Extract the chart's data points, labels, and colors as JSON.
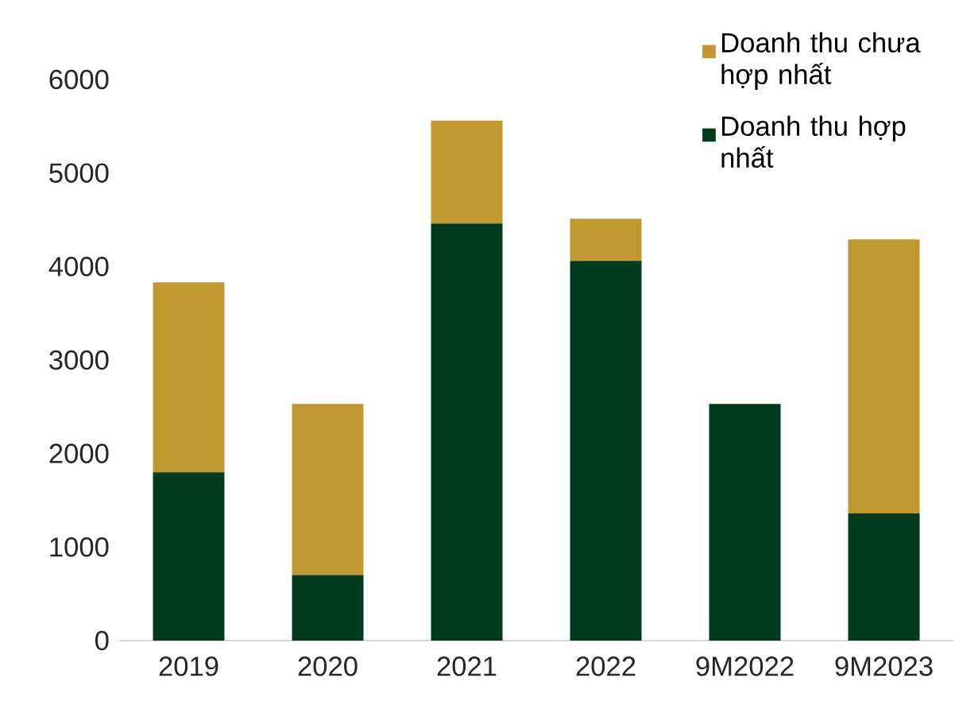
{
  "chart_data": {
    "type": "bar",
    "stacked": true,
    "categories": [
      "2019",
      "2020",
      "2021",
      "2022",
      "9M2022",
      "9M2023"
    ],
    "series": [
      {
        "name": "Doanh thu hợp nhất",
        "color": "#003a1f",
        "values": [
          1800,
          700,
          4460,
          4060,
          2530,
          1360
        ]
      },
      {
        "name": "Doanh thu chưa hợp nhất",
        "color": "#c0982f",
        "values": [
          2030,
          1830,
          1100,
          450,
          0,
          2930
        ]
      }
    ],
    "ylim": [
      0,
      6000
    ],
    "yticks": [
      0,
      1000,
      2000,
      3000,
      4000,
      5000,
      6000
    ],
    "legend": "top right"
  }
}
